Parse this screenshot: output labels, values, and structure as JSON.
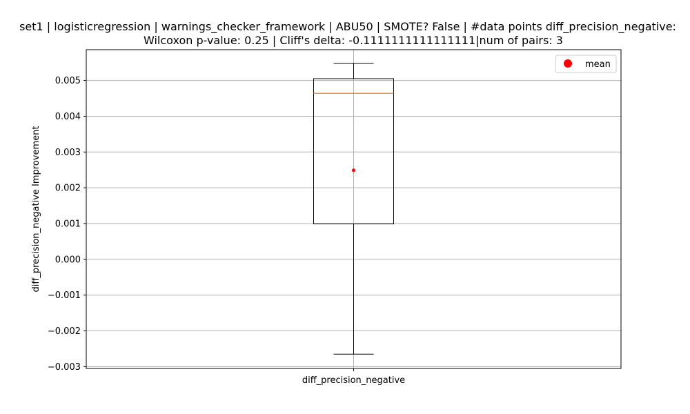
{
  "chart_data": {
    "type": "box",
    "title": "set1 | logisticregression | warnings_checker_framework | ABU50 | SMOTE? False | #data points diff_precision_negative:",
    "subtitle": "Wilcoxon p-value: 0.25 | Cliff's delta: -0.1111111111111111|num of pairs: 3",
    "xlabel": "",
    "ylabel": "diff_precision_negative Improvement",
    "categories": [
      "diff_precision_negative"
    ],
    "boxes": [
      {
        "name": "diff_precision_negative",
        "whisker_low": -0.00265,
        "q1": 0.00099,
        "median": 0.00464,
        "q3": 0.00505,
        "whisker_high": 0.00548,
        "mean": 0.00249
      }
    ],
    "ylim": [
      -0.00305,
      0.00586
    ],
    "yticks": [
      -0.003,
      -0.002,
      -0.001,
      0.0,
      0.001,
      0.002,
      0.003,
      0.004,
      0.005
    ],
    "ytick_labels": [
      "−0.003",
      "−0.002",
      "−0.001",
      "0.000",
      "0.001",
      "0.002",
      "0.003",
      "0.004",
      "0.005"
    ],
    "grid": true,
    "legend": {
      "position": "top-right",
      "entries": [
        {
          "label": "mean",
          "color": "#ff0000"
        }
      ]
    },
    "colors": {
      "box": "#000000",
      "median": "#ff7f0e",
      "mean": "#ff0000",
      "grid": "#b0b0b0"
    }
  }
}
